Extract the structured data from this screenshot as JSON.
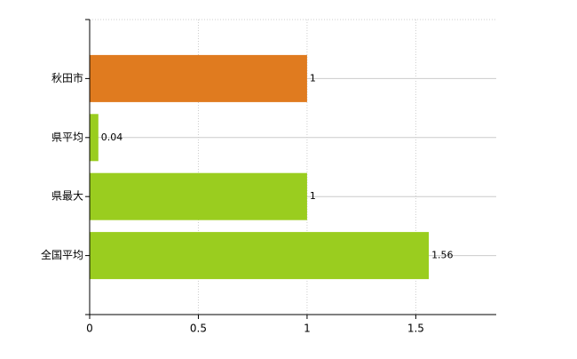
{
  "chart_data": {
    "type": "hbar",
    "categories": [
      "秋田市",
      "県平均",
      "県最大",
      "全国平均"
    ],
    "values": [
      1,
      0.04,
      1,
      1.56
    ],
    "colors": [
      "#e07b1f",
      "#9acd1f",
      "#9acd1f",
      "#9acd1f"
    ],
    "xlim": [
      0,
      1.87
    ],
    "xticks": [
      0,
      0.5,
      1,
      1.5
    ],
    "grid": true
  }
}
